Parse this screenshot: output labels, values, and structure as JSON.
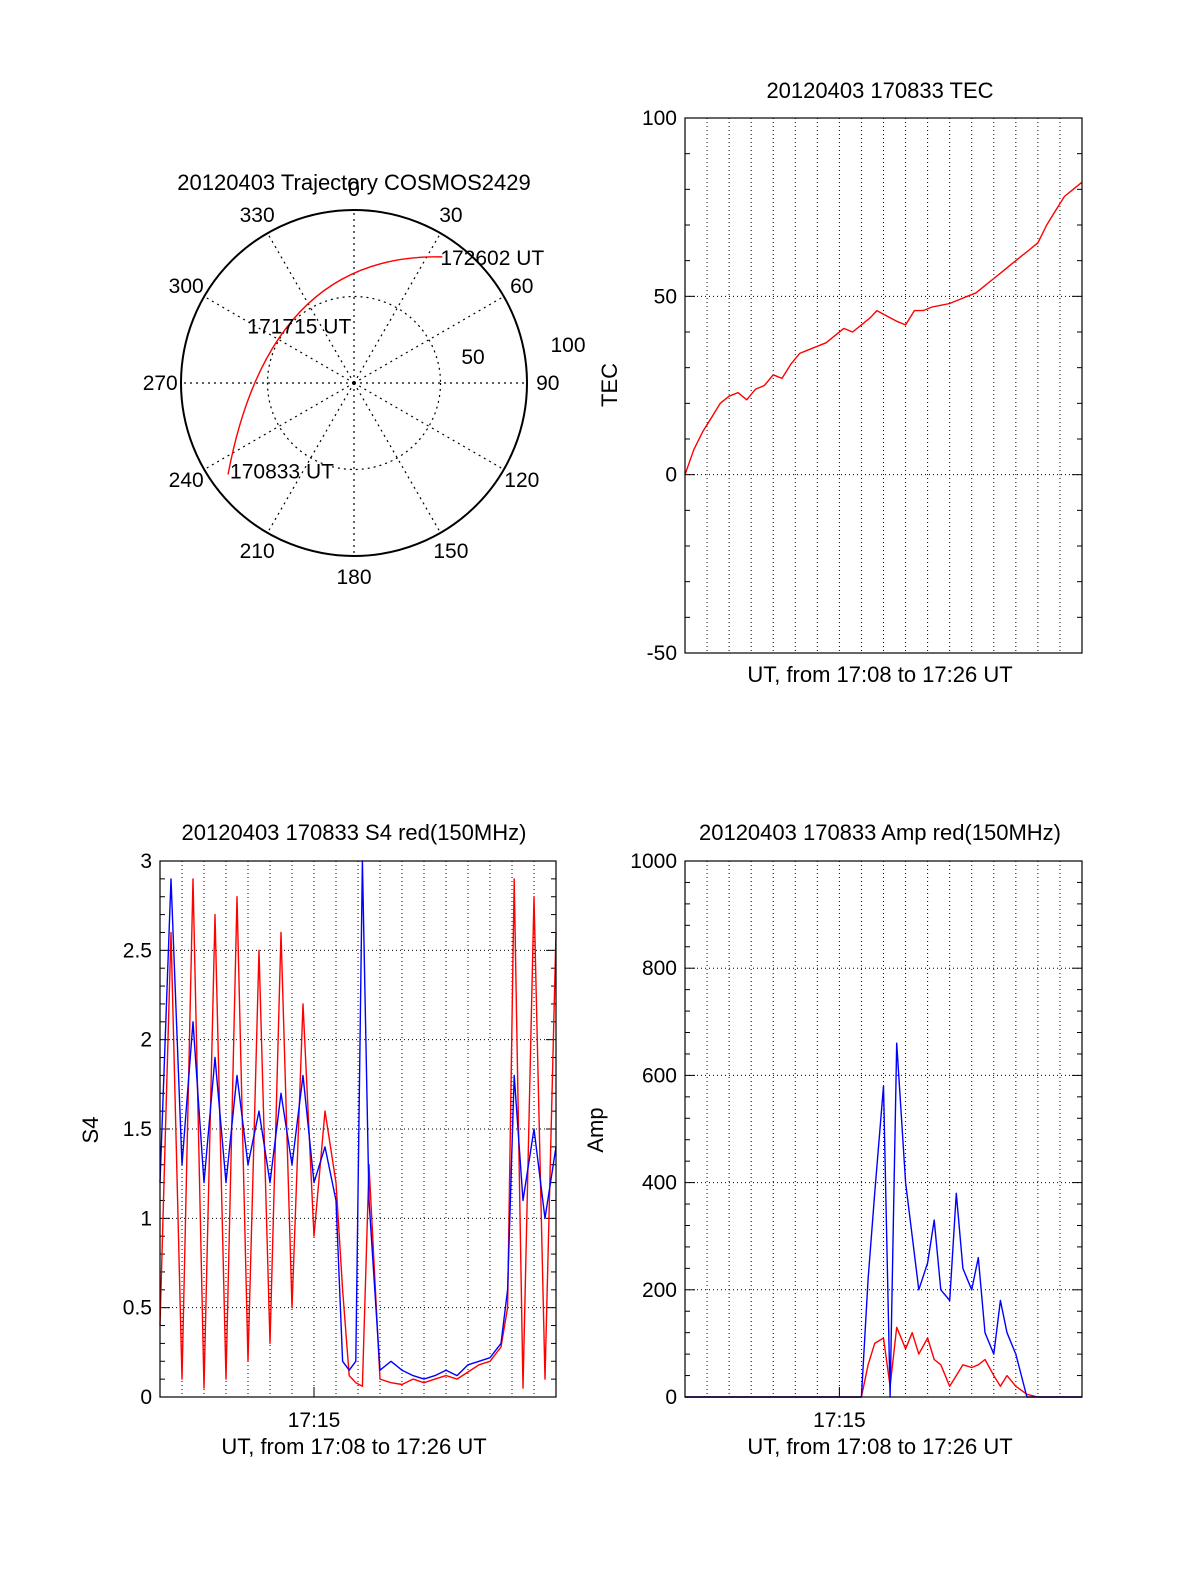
{
  "chart_data": [
    {
      "type": "polar",
      "title": "20120403 Trajectory COSMOS2429",
      "angle_labels": [
        "0",
        "30",
        "60",
        "90",
        "120",
        "150",
        "180",
        "210",
        "240",
        "270",
        "300",
        "330"
      ],
      "angles": [
        0,
        30,
        60,
        90,
        120,
        150,
        180,
        210,
        240,
        270,
        300,
        330
      ],
      "radius_labels": [
        "50",
        "100"
      ],
      "radius_values": [
        50,
        100
      ],
      "trajectory": {
        "color": "#ff0000",
        "start": {
          "label": "170833 UT",
          "azimuth": 234,
          "radius": 90
        },
        "mid": {
          "label": "171715 UT",
          "azimuth": 325,
          "radius": 52
        },
        "end": {
          "label": "172602 UT",
          "azimuth": 35,
          "radius": 89
        }
      }
    },
    {
      "type": "line",
      "title": "20120403 170833 TEC",
      "xlabel": "UT, from 17:08 to 17:26 UT",
      "ylabel": "TEC",
      "ylim": [
        -50,
        100
      ],
      "yticks": [
        -50,
        0,
        50,
        100
      ],
      "grid": true,
      "series": [
        {
          "color": "#ff0000",
          "x": [
            0,
            0.4,
            0.8,
            1.2,
            1.6,
            2.0,
            2.4,
            2.8,
            3.2,
            3.6,
            4.0,
            4.4,
            4.8,
            5.2,
            5.6,
            6.0,
            6.4,
            6.8,
            7.2,
            7.6,
            8.0,
            8.4,
            8.7,
            9.0,
            9.3,
            9.6,
            10.0,
            10.4,
            10.8,
            11.2,
            11.6,
            12.0,
            12.4,
            12.8,
            13.2,
            13.6,
            14.0,
            14.4,
            14.8,
            15.2,
            15.6,
            16.0,
            16.4,
            16.8,
            17.2,
            17.6,
            18.0
          ],
          "values": [
            0,
            7,
            12,
            16,
            20,
            22,
            23,
            21,
            24,
            25,
            28,
            27,
            31,
            34,
            35,
            36,
            37,
            39,
            41,
            40,
            42,
            44,
            46,
            45,
            44,
            43,
            42,
            46,
            46,
            47,
            47.5,
            48,
            49,
            50,
            51,
            53,
            55,
            57,
            59,
            61,
            63,
            65,
            70,
            74,
            78,
            80,
            82
          ]
        }
      ]
    },
    {
      "type": "line",
      "title": "20120403 170833 S4 red(150MHz)",
      "xlabel": "UT, from 17:08 to 17:26 UT",
      "ylabel": "S4",
      "ylim": [
        0,
        3
      ],
      "yticks": [
        0,
        0.5,
        1,
        1.5,
        2,
        2.5,
        3
      ],
      "xticks": [
        {
          "x": 7,
          "label": "17:15"
        }
      ],
      "grid": true,
      "series": [
        {
          "color": "#ff0000",
          "x": [
            0,
            0.5,
            1.0,
            1.5,
            2.0,
            2.5,
            3.0,
            3.5,
            4.0,
            4.5,
            5.0,
            5.5,
            6.0,
            6.5,
            7.0,
            7.5,
            8.0,
            8.3,
            8.6,
            8.9,
            9.2,
            9.5,
            10.0,
            10.5,
            11.0,
            11.5,
            12.0,
            12.5,
            13.0,
            13.5,
            14.0,
            14.5,
            15.0,
            15.5,
            15.8,
            16.1,
            16.5,
            17.0,
            17.5,
            18.0
          ],
          "values": [
            0.4,
            2.6,
            0.1,
            2.9,
            0.05,
            2.7,
            0.1,
            2.8,
            0.2,
            2.5,
            0.3,
            2.6,
            0.5,
            2.2,
            0.9,
            1.6,
            1.2,
            0.6,
            0.12,
            0.08,
            0.06,
            1.3,
            0.1,
            0.08,
            0.07,
            0.1,
            0.08,
            0.1,
            0.12,
            0.1,
            0.14,
            0.18,
            0.2,
            0.28,
            0.5,
            2.9,
            0.05,
            2.8,
            0.1,
            2.6
          ]
        },
        {
          "color": "#0000ff",
          "x": [
            0,
            0.5,
            1.0,
            1.5,
            2.0,
            2.5,
            3.0,
            3.5,
            4.0,
            4.5,
            5.0,
            5.5,
            6.0,
            6.5,
            7.0,
            7.5,
            8.0,
            8.3,
            8.6,
            8.9,
            9.2,
            9.5,
            10.0,
            10.5,
            11.0,
            11.5,
            12.0,
            12.5,
            13.0,
            13.5,
            14.0,
            14.5,
            15.0,
            15.5,
            15.8,
            16.1,
            16.5,
            17.0,
            17.5,
            18.0
          ],
          "values": [
            1.2,
            2.9,
            1.3,
            2.1,
            1.2,
            1.9,
            1.2,
            1.8,
            1.3,
            1.6,
            1.2,
            1.7,
            1.3,
            1.8,
            1.2,
            1.4,
            1.1,
            0.2,
            0.15,
            0.2,
            3.0,
            1.1,
            0.15,
            0.2,
            0.15,
            0.12,
            0.1,
            0.12,
            0.15,
            0.12,
            0.18,
            0.2,
            0.22,
            0.3,
            0.6,
            1.8,
            1.1,
            1.5,
            1.0,
            1.4
          ]
        }
      ]
    },
    {
      "type": "line",
      "title": "20120403 170833 Amp red(150MHz)",
      "xlabel": "UT, from 17:08 to 17:26 UT",
      "ylabel": "Amp",
      "ylim": [
        0,
        1000
      ],
      "yticks": [
        0,
        200,
        400,
        600,
        800,
        1000
      ],
      "xticks": [
        {
          "x": 7,
          "label": "17:15"
        }
      ],
      "grid": true,
      "series": [
        {
          "color": "#ff0000",
          "x": [
            0,
            4,
            7.5,
            8.0,
            8.3,
            8.6,
            9.0,
            9.3,
            9.6,
            10.0,
            10.3,
            10.6,
            11.0,
            11.3,
            11.6,
            12.0,
            12.3,
            12.6,
            13.0,
            13.3,
            13.6,
            14.0,
            14.3,
            14.6,
            15.0,
            15.5,
            16.0,
            18.0
          ],
          "values": [
            0,
            0,
            0,
            0,
            60,
            100,
            110,
            20,
            130,
            90,
            120,
            80,
            110,
            70,
            60,
            20,
            40,
            60,
            55,
            60,
            70,
            40,
            20,
            40,
            20,
            5,
            0,
            0
          ]
        },
        {
          "color": "#0000ff",
          "x": [
            0,
            4,
            7.5,
            8.0,
            8.3,
            8.6,
            9.0,
            9.3,
            9.6,
            10.0,
            10.3,
            10.6,
            11.0,
            11.3,
            11.6,
            12.0,
            12.3,
            12.6,
            13.0,
            13.3,
            13.6,
            14.0,
            14.3,
            14.6,
            15.0,
            15.5,
            16.0,
            18.0
          ],
          "values": [
            0,
            0,
            0,
            0,
            220,
            380,
            580,
            0,
            660,
            400,
            300,
            200,
            250,
            330,
            200,
            180,
            380,
            240,
            200,
            260,
            120,
            80,
            180,
            120,
            80,
            0,
            0,
            0
          ]
        }
      ]
    }
  ]
}
